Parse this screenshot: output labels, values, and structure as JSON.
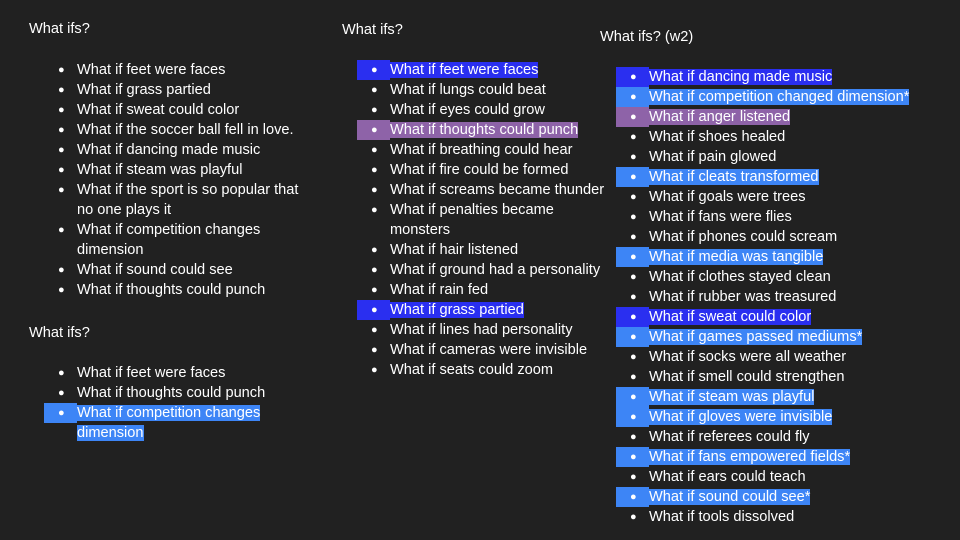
{
  "col1": {
    "heading1": "What ifs?",
    "list1": [
      {
        "text": "What if feet were faces",
        "hl": ""
      },
      {
        "text": "What if grass partied",
        "hl": ""
      },
      {
        "text": "What if sweat could color",
        "hl": ""
      },
      {
        "text": "What if the soccer ball fell in love.",
        "hl": ""
      },
      {
        "text": "What if dancing made music",
        "hl": ""
      },
      {
        "text": "What if steam was playful",
        "hl": ""
      },
      {
        "text": "What if the sport is so popular that",
        "hl": "",
        "cont": "no one plays it"
      },
      {
        "text": "What if competition changes",
        "hl": "",
        "cont": "dimension"
      },
      {
        "text": "What if sound could see",
        "hl": ""
      },
      {
        "text": "What if thoughts could punch",
        "hl": ""
      }
    ],
    "heading2": "What ifs?",
    "list2": [
      {
        "text": "What if feet were faces",
        "hl": ""
      },
      {
        "text": "What if thoughts could punch",
        "hl": ""
      },
      {
        "text": "What if competition changes",
        "hl": "blue",
        "cont": "dimension"
      }
    ]
  },
  "col2": {
    "heading": "What ifs?",
    "list": [
      {
        "text": "What if feet were faces",
        "hl": "navy"
      },
      {
        "text": "What if lungs could beat",
        "hl": ""
      },
      {
        "text": "What if eyes could grow",
        "hl": ""
      },
      {
        "text": "What if thoughts could punch",
        "hl": "purple"
      },
      {
        "text": "What if breathing could hear",
        "hl": ""
      },
      {
        "text": "What if fire could be formed",
        "hl": ""
      },
      {
        "text": "What if screams became thunder",
        "hl": ""
      },
      {
        "text": "What if penalties became",
        "hl": "",
        "cont": "monsters"
      },
      {
        "text": "What if hair listened",
        "hl": ""
      },
      {
        "text": "What if ground had a personality",
        "hl": ""
      },
      {
        "text": "What if rain fed",
        "hl": ""
      },
      {
        "text": "What if grass partied",
        "hl": "navy"
      },
      {
        "text": "What if lines had personality",
        "hl": ""
      },
      {
        "text": "What if cameras were invisible",
        "hl": ""
      },
      {
        "text": "What if seats could zoom",
        "hl": ""
      }
    ]
  },
  "col3": {
    "heading": "What ifs? (w2)",
    "list": [
      {
        "text": "What if dancing made music",
        "hl": "navy"
      },
      {
        "text": "What if competition changed dimension*",
        "hl": "blue"
      },
      {
        "text": "What if anger listened",
        "hl": "purple"
      },
      {
        "text": "What if shoes healed",
        "hl": ""
      },
      {
        "text": "What if pain glowed",
        "hl": ""
      },
      {
        "text": "What if cleats transformed",
        "hl": "blue"
      },
      {
        "text": "What if goals were trees",
        "hl": ""
      },
      {
        "text": "What if fans were flies",
        "hl": ""
      },
      {
        "text": "What if phones could scream",
        "hl": ""
      },
      {
        "text": "What if media was tangible",
        "hl": "blue"
      },
      {
        "text": "What if clothes stayed clean",
        "hl": ""
      },
      {
        "text": "What if rubber was treasured",
        "hl": ""
      },
      {
        "text": "What if sweat could color",
        "hl": "navy"
      },
      {
        "text": "What if games passed mediums*",
        "hl": "blue"
      },
      {
        "text": "What if socks were all weather",
        "hl": ""
      },
      {
        "text": "What if smell could strengthen",
        "hl": ""
      },
      {
        "text": "What if steam was playful",
        "hl": "blue"
      },
      {
        "text": "What if gloves were invisible",
        "hl": "blue"
      },
      {
        "text": "What if referees could fly",
        "hl": ""
      },
      {
        "text": "What if fans empowered fields*",
        "hl": "blue"
      },
      {
        "text": "What if ears could teach",
        "hl": ""
      },
      {
        "text": "What if sound could see*",
        "hl": "blue"
      },
      {
        "text": "What if tools dissolved",
        "hl": ""
      }
    ]
  },
  "bullet_char": "●",
  "colors": {
    "background": "#212121",
    "text": "#ffffff",
    "highlight_blue": "#3d85f6",
    "highlight_navy": "#2a2ff0",
    "highlight_purple": "#8e63a8"
  }
}
